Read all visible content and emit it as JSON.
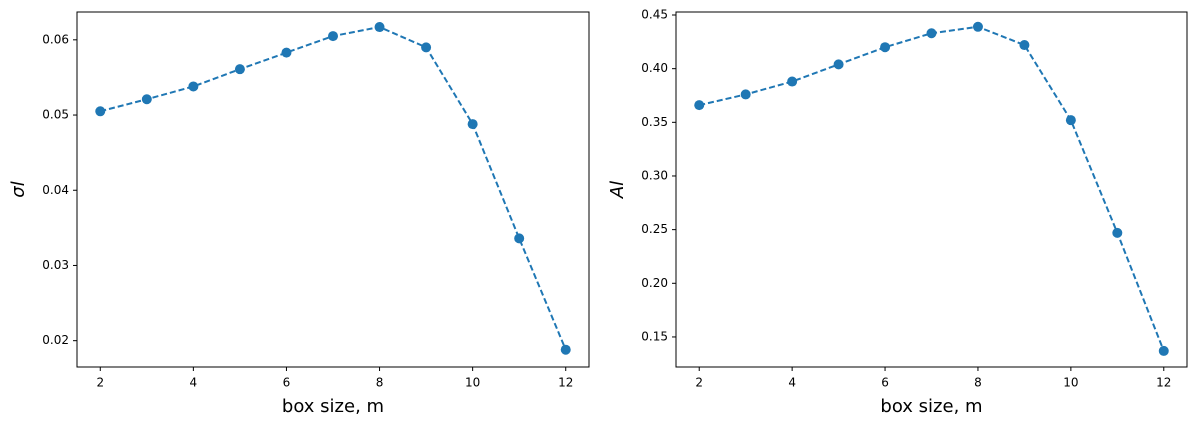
{
  "chart_data": [
    {
      "type": "line",
      "xlabel": "box size, m",
      "ylabel": "σl",
      "x": [
        2,
        3,
        4,
        5,
        6,
        7,
        8,
        9,
        10,
        11,
        12
      ],
      "series": [
        {
          "color": "#1f77b4",
          "values": [
            0.0505,
            0.0521,
            0.0538,
            0.0561,
            0.0583,
            0.0605,
            0.0617,
            0.059,
            0.0488,
            0.0336,
            0.0188
          ]
        }
      ],
      "xlim": [
        1.5,
        12.5
      ],
      "xticks": [
        2,
        4,
        6,
        8,
        10,
        12
      ],
      "ylim": [
        0.0165,
        0.0637
      ],
      "yticks": [
        0.02,
        0.03,
        0.04,
        0.05,
        0.06
      ]
    },
    {
      "type": "line",
      "xlabel": "box size, m",
      "ylabel": "Al",
      "x": [
        2,
        3,
        4,
        5,
        6,
        7,
        8,
        9,
        10,
        11,
        12
      ],
      "series": [
        {
          "color": "#1f77b4",
          "values": [
            0.366,
            0.376,
            0.388,
            0.404,
            0.42,
            0.433,
            0.439,
            0.422,
            0.352,
            0.247,
            0.137
          ]
        }
      ],
      "xlim": [
        1.5,
        12.5
      ],
      "xticks": [
        2,
        4,
        6,
        8,
        10,
        12
      ],
      "ylim": [
        0.122,
        0.4528
      ],
      "yticks": [
        0.15,
        {
          "value": 0.2,
          "label": "0.20"
        },
        0.25,
        {
          "value": 0.3,
          "label": "0.30"
        },
        0.35,
        {
          "value": 0.4,
          "label": "0.40"
        },
        0.45
      ]
    }
  ]
}
